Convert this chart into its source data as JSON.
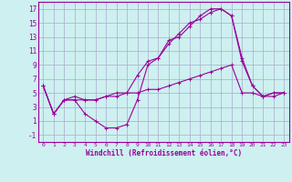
{
  "xlabel": "Windchill (Refroidissement éolien,°C)",
  "background_color": "#cef0f0",
  "grid_color": "#aaaacc",
  "line_color": "#990099",
  "xlim": [
    -0.5,
    23.5
  ],
  "ylim": [
    -2,
    18
  ],
  "xticks": [
    0,
    1,
    2,
    3,
    4,
    5,
    6,
    7,
    8,
    9,
    10,
    11,
    12,
    13,
    14,
    15,
    16,
    17,
    18,
    19,
    20,
    21,
    22,
    23
  ],
  "yticks": [
    -1,
    1,
    3,
    5,
    7,
    9,
    11,
    13,
    15,
    17
  ],
  "line1_x": [
    0,
    1,
    2,
    3,
    4,
    5,
    6,
    7,
    8,
    9,
    10,
    11,
    12,
    13,
    14,
    15,
    16,
    17,
    18,
    19,
    20,
    21,
    22,
    23
  ],
  "line1_y": [
    6,
    2,
    4,
    4,
    2,
    1,
    0,
    0,
    0.5,
    4,
    9,
    10,
    12.5,
    13,
    14.5,
    16,
    17,
    17,
    16,
    9.5,
    6,
    4.5,
    5,
    5
  ],
  "line2_x": [
    0,
    1,
    2,
    3,
    4,
    5,
    6,
    7,
    8,
    9,
    10,
    11,
    12,
    13,
    14,
    15,
    16,
    17,
    18,
    19,
    20,
    21,
    22,
    23
  ],
  "line2_y": [
    6,
    2,
    4,
    4.5,
    4,
    4,
    4.5,
    5,
    5,
    7.5,
    9.5,
    10,
    12,
    13.5,
    15,
    15.5,
    16.5,
    17,
    16,
    10,
    6,
    4.5,
    5,
    5
  ],
  "line3_x": [
    0,
    1,
    2,
    3,
    4,
    5,
    6,
    7,
    8,
    9,
    10,
    11,
    12,
    13,
    14,
    15,
    16,
    17,
    18,
    19,
    20,
    21,
    22,
    23
  ],
  "line3_y": [
    6,
    2,
    4,
    4,
    4,
    4,
    4.5,
    4.5,
    5,
    5,
    5.5,
    5.5,
    6,
    6.5,
    7,
    7.5,
    8,
    8.5,
    9,
    5,
    5,
    4.5,
    4.5,
    5
  ]
}
